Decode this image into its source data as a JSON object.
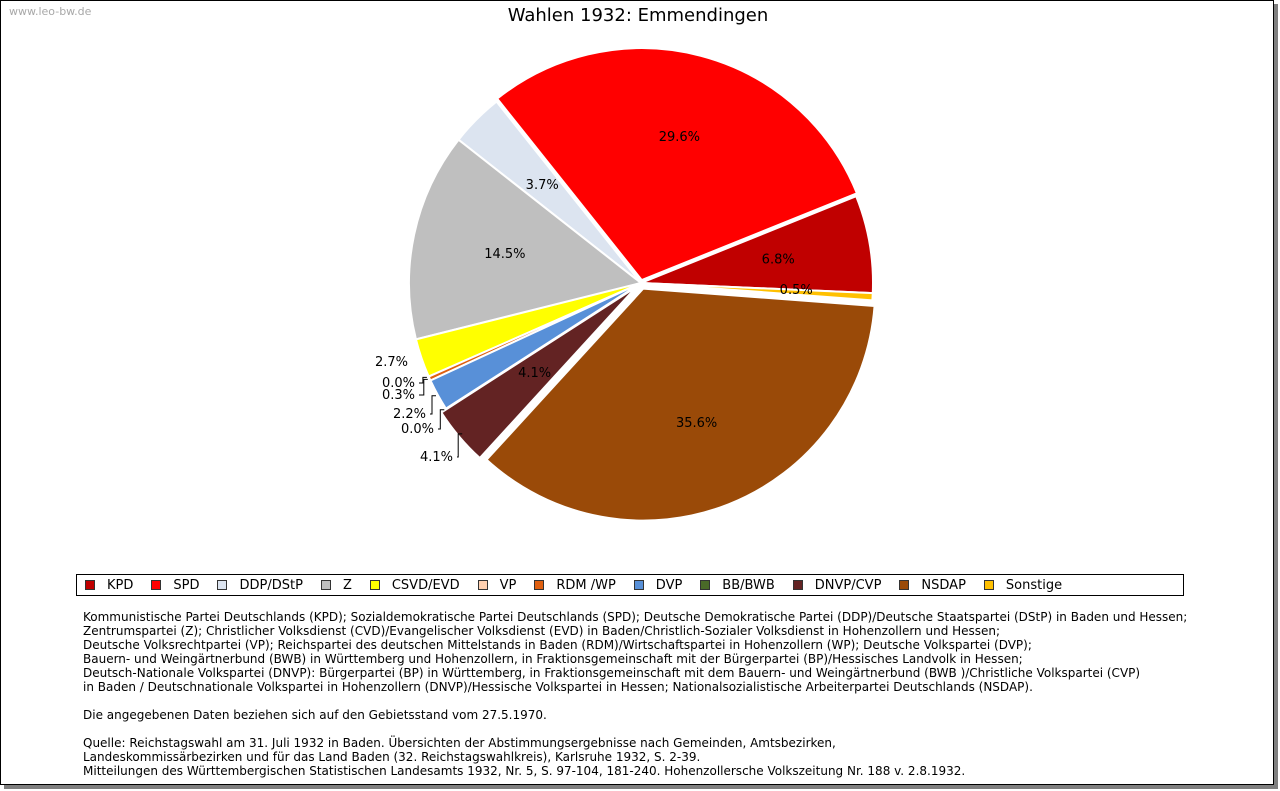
{
  "watermark": "www.leo-bw.de",
  "chart_data": {
    "type": "pie",
    "title": "Wahlen 1932: Emmendingen",
    "slices": [
      {
        "name": "KPD",
        "value": 6.8,
        "label": "6.8%",
        "color": "#c00000"
      },
      {
        "name": "SPD",
        "value": 29.6,
        "label": "29.6%",
        "color": "#ff0000"
      },
      {
        "name": "DDP/DStP",
        "value": 3.7,
        "label": "3.7%",
        "color": "#dce4f0"
      },
      {
        "name": "Z",
        "value": 14.5,
        "label": "14.5%",
        "color": "#bfbfbf"
      },
      {
        "name": "CSVD/EVD",
        "value": 2.7,
        "label": "2.7%",
        "color": "#ffff00"
      },
      {
        "name": "VP",
        "value": 0.0,
        "label": "0.0%",
        "color": "#ffd0b0"
      },
      {
        "name": "RDM /WP",
        "value": 0.3,
        "label": "0.3%",
        "color": "#e06010"
      },
      {
        "name": "DVP",
        "value": 2.2,
        "label": "2.2%",
        "color": "#5890d8"
      },
      {
        "name": "BB/BWB",
        "value": 0.0,
        "label": "0.0%",
        "color": "#4a6a28"
      },
      {
        "name": "DNVP/CVP",
        "value": 4.1,
        "label": "4.1%",
        "color": "#632323"
      },
      {
        "name": "NSDAP",
        "value": 35.6,
        "label": "35.6%",
        "color": "#9a4a08"
      },
      {
        "name": "Sonstige",
        "value": 0.5,
        "label": "0.5%",
        "color": "#ffc000"
      }
    ],
    "legend_position": "bottom"
  },
  "notes": {
    "abbreviations": [
      "Kommunistische Partei Deutschlands (KPD); Sozialdemokratische Partei Deutschlands (SPD); Deutsche Demokratische Partei (DDP)/Deutsche Staatspartei (DStP) in Baden und Hessen;",
      "Zentrumspartei (Z); Christlicher Volksdienst (CVD)/Evangelischer Volksdienst (EVD) in Baden/Christlich-Sozialer Volksdienst in Hohenzollern und Hessen;",
      "Deutsche Volksrechtpartei (VP); Reichspartei des deutschen Mittelstands in Baden (RDM)/Wirtschaftspartei in Hohenzollern (WP); Deutsche Volkspartei (DVP);",
      "Bauern- und Weingärtnerbund (BWB) in Württemberg und Hohenzollern, in Fraktionsgemeinschaft mit der Bürgerpartei (BP)/Hessisches Landvolk in Hessen;",
      "Deutsch-Nationale Volkspartei (DNVP): Bürgerpartei (BP) in Württemberg, in Fraktionsgemeinschaft mit dem Bauern- und Weingärtnerbund (BWB )/Christliche Volkspartei (CVP)",
      "in Baden / Deutschnationale Volkspartei in Hohenzollern (DNVP)/Hessische Volkspartei in Hessen; Nationalsozialistische Arbeiterpartei Deutschlands (NSDAP)."
    ],
    "territory": "Die angegebenen Daten beziehen sich auf den Gebietsstand vom 27.5.1970.",
    "source": [
      "Quelle: Reichstagswahl am 31. Juli 1932 in Baden. Übersichten der Abstimmungsergebnisse nach Gemeinden, Amtsbezirken,",
      "Landeskommissärbezirken und für das Land Baden (32. Reichstagswahlkreis), Karlsruhe 1932, S. 2-39.",
      "Mitteilungen des Württembergischen Statistischen Landesamts 1932, Nr. 5, S. 97-104, 181-240. Hohenzollersche Volkszeitung Nr. 188 v. 2.8.1932."
    ]
  }
}
